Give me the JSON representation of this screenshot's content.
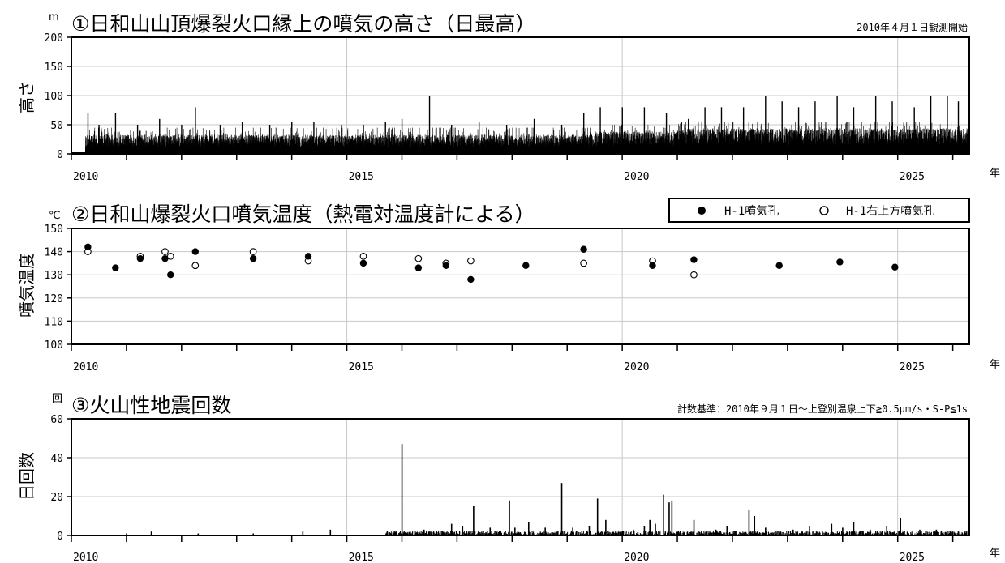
{
  "chart_data": [
    {
      "type": "bar",
      "title": "①日和山山頂爆裂火口縁上の噴気の高さ（日最高）",
      "unit": "m",
      "note": "2010年４月１日観測開始",
      "ylabel": "高さ",
      "xlabel": "年",
      "xlim": [
        2010.0,
        2026.3
      ],
      "ylim": [
        0,
        200
      ],
      "yticks": [
        0,
        50,
        100,
        150,
        200
      ],
      "xticks": [
        2010,
        2015,
        2020,
        2025
      ],
      "grid": true,
      "observation_start": 2010.25,
      "baseline_heights": [
        {
          "from": 2010.25,
          "to": 2016.5,
          "value": 30
        },
        {
          "from": 2016.5,
          "to": 2019.5,
          "value": 30
        },
        {
          "from": 2019.5,
          "to": 2021.0,
          "value": 35
        },
        {
          "from": 2021.0,
          "to": 2026.3,
          "value": 40
        }
      ],
      "x": [
        2010.3,
        2010.5,
        2010.8,
        2011.2,
        2011.6,
        2012.0,
        2012.25,
        2012.7,
        2013.1,
        2013.6,
        2014.0,
        2014.4,
        2014.9,
        2015.3,
        2015.7,
        2016.0,
        2016.5,
        2016.9,
        2017.4,
        2017.9,
        2018.4,
        2018.9,
        2019.3,
        2019.6,
        2020.0,
        2020.4,
        2020.8,
        2021.2,
        2021.5,
        2021.8,
        2022.2,
        2022.6,
        2022.9,
        2023.2,
        2023.5,
        2023.9,
        2024.2,
        2024.6,
        2024.9,
        2025.3,
        2025.6,
        2025.9,
        2026.1
      ],
      "values": [
        70,
        50,
        70,
        50,
        60,
        50,
        80,
        50,
        55,
        50,
        55,
        55,
        50,
        50,
        55,
        60,
        100,
        50,
        55,
        50,
        60,
        50,
        70,
        80,
        80,
        80,
        70,
        60,
        80,
        80,
        80,
        100,
        90,
        80,
        90,
        100,
        80,
        100,
        90,
        80,
        100,
        100,
        90
      ]
    },
    {
      "type": "scatter",
      "title": "②日和山爆裂火口噴気温度（熱電対温度計による）",
      "unit": "℃",
      "ylabel": "噴気温度",
      "xlabel": "年",
      "xlim": [
        2010.0,
        2026.3
      ],
      "ylim": [
        100,
        150
      ],
      "yticks": [
        100,
        110,
        120,
        130,
        140,
        150
      ],
      "xticks": [
        2010,
        2015,
        2020,
        2025
      ],
      "grid": true,
      "legend_position": "top-right",
      "series": [
        {
          "name": "H-1噴気孔",
          "marker": "filled",
          "points": [
            [
              2010.3,
              142
            ],
            [
              2010.8,
              133
            ],
            [
              2011.25,
              137
            ],
            [
              2011.7,
              137
            ],
            [
              2011.8,
              130
            ],
            [
              2012.25,
              140
            ],
            [
              2013.3,
              137
            ],
            [
              2014.3,
              138
            ],
            [
              2015.3,
              135
            ],
            [
              2016.3,
              133
            ],
            [
              2016.8,
              134
            ],
            [
              2017.25,
              128
            ],
            [
              2018.25,
              134
            ],
            [
              2019.3,
              141
            ],
            [
              2020.55,
              134
            ],
            [
              2021.3,
              136.5
            ],
            [
              2022.85,
              134
            ],
            [
              2023.95,
              135.5
            ],
            [
              2024.95,
              133.3
            ]
          ]
        },
        {
          "name": "H-1右上方噴気孔",
          "marker": "open",
          "points": [
            [
              2010.3,
              140
            ],
            [
              2011.25,
              138
            ],
            [
              2011.7,
              140
            ],
            [
              2011.8,
              138
            ],
            [
              2012.25,
              134
            ],
            [
              2013.3,
              140
            ],
            [
              2014.3,
              136
            ],
            [
              2015.3,
              138
            ],
            [
              2016.3,
              137
            ],
            [
              2016.8,
              135
            ],
            [
              2017.25,
              136
            ],
            [
              2019.3,
              135
            ],
            [
              2020.55,
              136
            ],
            [
              2021.3,
              130
            ]
          ]
        }
      ]
    },
    {
      "type": "bar",
      "title": "③火山性地震回数",
      "unit": "回",
      "note": "計数基準：2010年９月１日～上登別温泉上下≧0.5μm/s・S-P≦1s",
      "ylabel": "日回数",
      "xlabel": "年",
      "xlim": [
        2010.0,
        2026.3
      ],
      "ylim": [
        0,
        60
      ],
      "yticks": [
        0,
        20,
        40,
        60
      ],
      "xticks": [
        2010,
        2015,
        2020,
        2025
      ],
      "grid": true,
      "x": [
        2011.0,
        2011.45,
        2012.3,
        2013.3,
        2014.2,
        2014.7,
        2015.9,
        2016.0,
        2016.4,
        2016.9,
        2017.1,
        2017.3,
        2017.6,
        2017.95,
        2018.05,
        2018.3,
        2018.6,
        2018.9,
        2019.1,
        2019.4,
        2019.55,
        2019.7,
        2020.2,
        2020.4,
        2020.5,
        2020.6,
        2020.75,
        2020.85,
        2020.9,
        2021.3,
        2021.7,
        2021.9,
        2022.3,
        2022.4,
        2022.6,
        2023.1,
        2023.4,
        2023.8,
        2024.0,
        2024.2,
        2024.5,
        2024.8,
        2025.05,
        2025.4,
        2025.7,
        2026.0
      ],
      "values": [
        1,
        2,
        1,
        1,
        2,
        3,
        2,
        47,
        3,
        6,
        5,
        15,
        4,
        18,
        4,
        7,
        4,
        27,
        4,
        5,
        19,
        8,
        3,
        5,
        8,
        6,
        21,
        17,
        18,
        8,
        3,
        5,
        13,
        10,
        4,
        3,
        5,
        6,
        4,
        7,
        3,
        5,
        9,
        3,
        3,
        2
      ]
    }
  ]
}
